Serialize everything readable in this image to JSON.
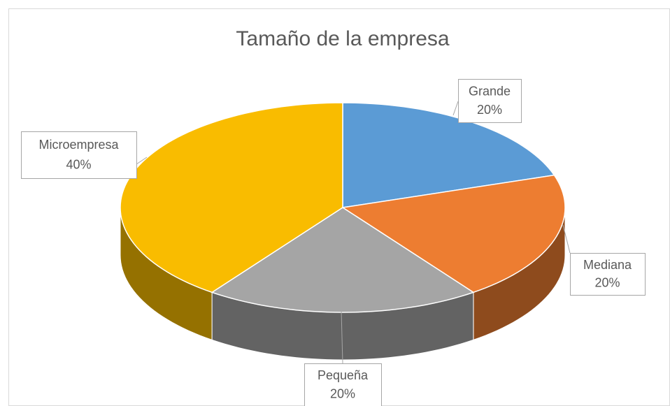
{
  "chart_data": {
    "type": "pie",
    "title": "Tamaño de la empresa",
    "categories": [
      "Grande",
      "Mediana",
      "Pequeña",
      "Microempresa"
    ],
    "values": [
      20,
      20,
      20,
      40
    ],
    "value_labels": [
      "20%",
      "20%",
      "20%",
      "40%"
    ],
    "colors": [
      "#5b9bd5",
      "#ed7d31",
      "#a5a5a5",
      "#f9bc00"
    ]
  }
}
